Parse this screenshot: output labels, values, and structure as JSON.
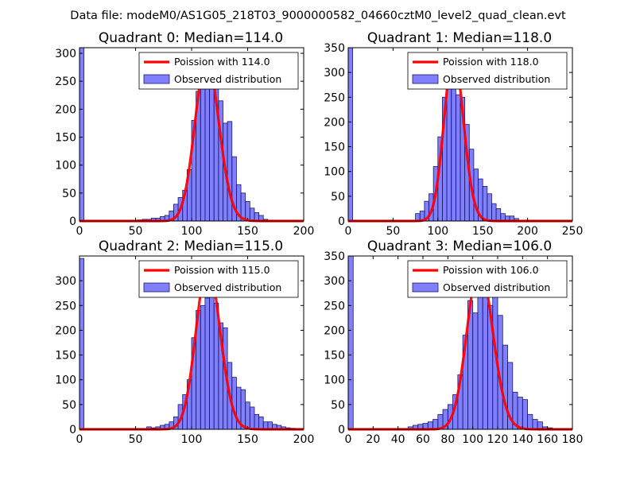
{
  "figure_title": "Data file: modeM0/AS1G05_218T03_9000000582_04660cztM0_level2_quad_clean.evt",
  "colors": {
    "bar_fill": "#8080ff",
    "bar_edge": "#1a1a66",
    "line": "#ff0000"
  },
  "chart_data": [
    {
      "type": "bar",
      "title": "Quadrant 0: Median=114.0",
      "median": 114.0,
      "xlim": [
        0,
        200
      ],
      "ylim": [
        0,
        310
      ],
      "xticks": [
        0,
        50,
        100,
        150,
        200
      ],
      "yticks": [
        0,
        50,
        100,
        150,
        200,
        250,
        300
      ],
      "bin_width": 4,
      "bins_x": [
        0,
        52,
        56,
        60,
        64,
        68,
        72,
        76,
        80,
        84,
        88,
        92,
        96,
        100,
        104,
        108,
        112,
        116,
        120,
        124,
        128,
        132,
        136,
        140,
        144,
        148,
        152,
        156,
        160,
        164
      ],
      "bins_y": [
        310,
        2,
        3,
        3,
        5,
        5,
        8,
        10,
        18,
        30,
        42,
        55,
        92,
        180,
        232,
        245,
        270,
        290,
        245,
        215,
        175,
        178,
        115,
        65,
        50,
        35,
        23,
        15,
        10,
        3
      ],
      "legend": {
        "line": "Poission with 114.0",
        "bars": "Observed distribution"
      }
    },
    {
      "type": "bar",
      "title": "Quadrant 1: Median=118.0",
      "median": 118.0,
      "xlim": [
        0,
        250
      ],
      "ylim": [
        0,
        350
      ],
      "xticks": [
        0,
        50,
        100,
        150,
        200,
        250
      ],
      "yticks": [
        0,
        50,
        100,
        150,
        200,
        250,
        300,
        350
      ],
      "bin_width": 5,
      "bins_x": [
        0,
        75,
        80,
        85,
        90,
        95,
        100,
        105,
        110,
        115,
        120,
        125,
        130,
        135,
        140,
        145,
        150,
        155,
        160,
        165,
        170,
        175,
        180,
        185
      ],
      "bins_y": [
        350,
        15,
        20,
        40,
        55,
        110,
        170,
        250,
        335,
        275,
        255,
        250,
        195,
        145,
        105,
        85,
        70,
        55,
        35,
        25,
        15,
        10,
        10,
        5
      ],
      "legend": {
        "line": "Poission with 118.0",
        "bars": "Observed distribution"
      }
    },
    {
      "type": "bar",
      "title": "Quadrant 2: Median=115.0",
      "median": 115.0,
      "xlim": [
        0,
        200
      ],
      "ylim": [
        0,
        350
      ],
      "xticks": [
        0,
        50,
        100,
        150,
        200
      ],
      "yticks": [
        0,
        50,
        100,
        150,
        200,
        250,
        300
      ],
      "bin_width": 4,
      "bins_x": [
        0,
        60,
        64,
        68,
        72,
        76,
        80,
        84,
        88,
        92,
        96,
        100,
        104,
        108,
        112,
        116,
        120,
        124,
        128,
        132,
        136,
        140,
        144,
        148,
        152,
        156,
        160,
        164,
        168,
        172,
        176,
        180,
        184,
        188
      ],
      "bins_y": [
        345,
        5,
        3,
        5,
        8,
        10,
        15,
        25,
        50,
        70,
        100,
        185,
        240,
        250,
        265,
        330,
        255,
        215,
        205,
        135,
        105,
        85,
        80,
        55,
        45,
        30,
        25,
        15,
        15,
        10,
        8,
        5,
        3,
        2
      ],
      "legend": {
        "line": "Poission with 115.0",
        "bars": "Observed distribution"
      }
    },
    {
      "type": "bar",
      "title": "Quadrant 3: Median=106.0",
      "median": 106.0,
      "xlim": [
        0,
        180
      ],
      "ylim": [
        0,
        350
      ],
      "xticks": [
        0,
        20,
        40,
        60,
        80,
        100,
        120,
        140,
        160,
        180
      ],
      "yticks": [
        0,
        50,
        100,
        150,
        200,
        250,
        300,
        350
      ],
      "bin_width": 4,
      "bins_x": [
        0,
        48,
        52,
        56,
        60,
        64,
        68,
        72,
        76,
        80,
        84,
        88,
        92,
        96,
        100,
        104,
        108,
        112,
        116,
        120,
        124,
        128,
        132,
        136,
        140,
        144,
        148,
        152,
        156,
        160
      ],
      "bins_y": [
        350,
        5,
        8,
        10,
        12,
        15,
        20,
        30,
        40,
        50,
        70,
        110,
        190,
        260,
        235,
        300,
        330,
        250,
        285,
        230,
        170,
        135,
        75,
        65,
        60,
        30,
        20,
        15,
        5,
        3
      ],
      "legend": {
        "line": "Poission with 106.0",
        "bars": "Observed distribution"
      }
    }
  ]
}
